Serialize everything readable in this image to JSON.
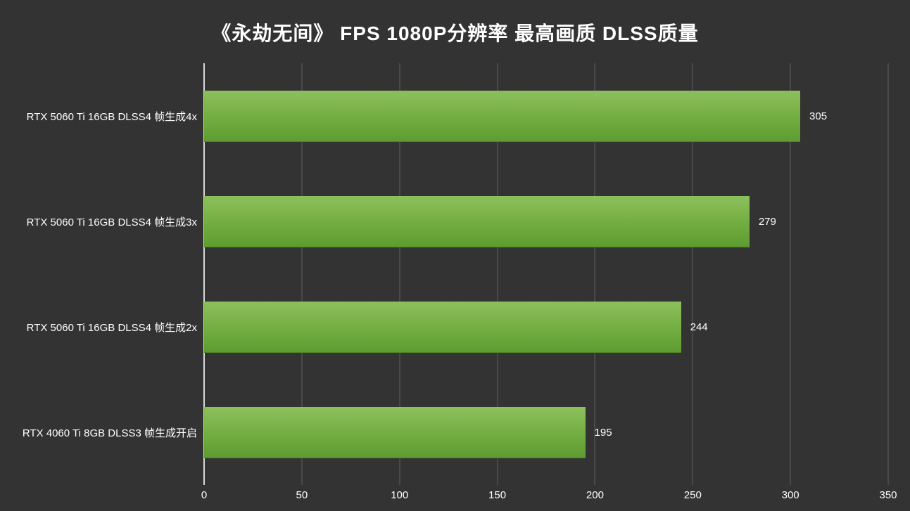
{
  "chart_data": {
    "type": "bar",
    "orientation": "horizontal",
    "title": "《永劫无间》 FPS 1080P分辨率 最高画质 DLSS质量",
    "categories": [
      "RTX 5060 Ti 16GB DLSS4 帧生成4x",
      "RTX 5060 Ti 16GB DLSS4 帧生成3x",
      "RTX 5060 Ti 16GB DLSS4 帧生成2x",
      "RTX 4060 Ti 8GB DLSS3 帧生成开启"
    ],
    "values": [
      305,
      279,
      244,
      195
    ],
    "xlabel": "",
    "ylabel": "",
    "xlim": [
      0,
      350
    ],
    "x_ticks": [
      0,
      50,
      100,
      150,
      200,
      250,
      300,
      350
    ],
    "grid": "vertical",
    "legend": "none",
    "colors": {
      "background": "#333333",
      "bar_gradient_top": "#8dc05c",
      "bar_gradient_bottom": "#5e9c31",
      "grid_line": "#5f5f5f",
      "axis_line": "#d9d9d9",
      "text": "#ffffff"
    }
  }
}
